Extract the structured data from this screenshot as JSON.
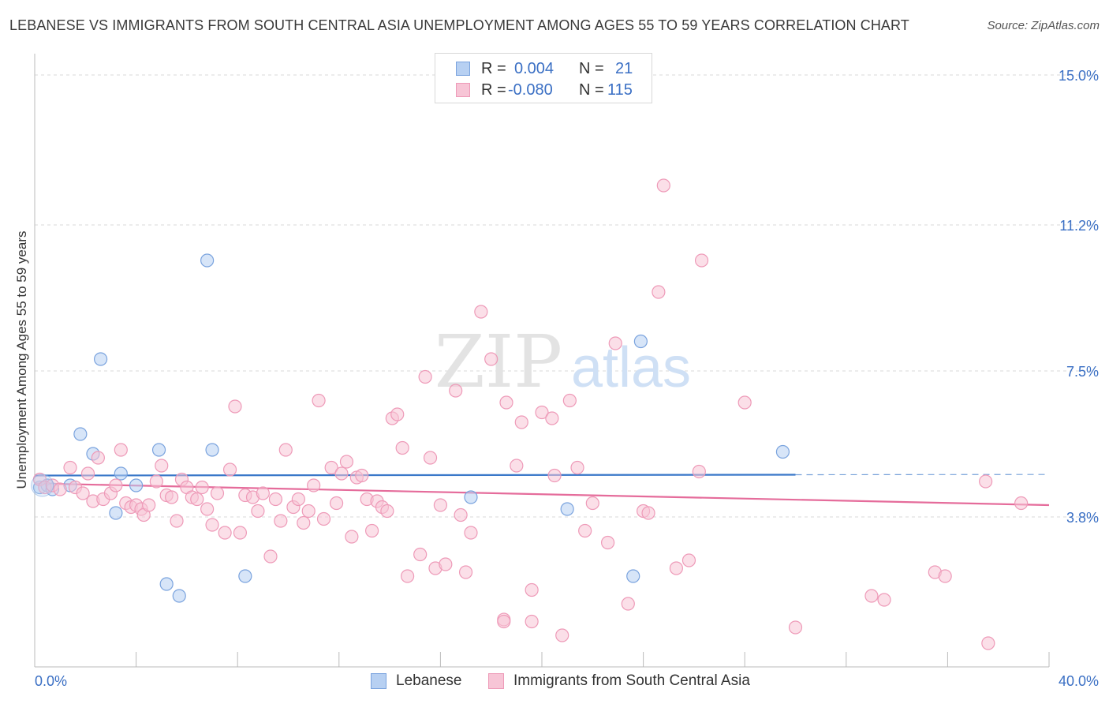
{
  "title": "LEBANESE VS IMMIGRANTS FROM SOUTH CENTRAL ASIA UNEMPLOYMENT AMONG AGES 55 TO 59 YEARS CORRELATION CHART",
  "source": "Source: ZipAtlas.com",
  "watermark": {
    "zip": "ZIP",
    "atlas": "atlas"
  },
  "legend": {
    "r_label": "R =",
    "n_label": "N =",
    "rows": [
      {
        "r": "0.004",
        "n": "21"
      },
      {
        "r": "-0.080",
        "n": "115"
      }
    ]
  },
  "bottom_legend": [
    "Lebanese",
    "Immigrants from South Central Asia"
  ],
  "colors": {
    "blue_fill": "#b7d0f2",
    "blue_stroke": "#7aa3de",
    "blue_line": "#3a78c9",
    "pink_fill": "#f7c5d6",
    "pink_stroke": "#ee9ab8",
    "pink_line": "#e56c9b",
    "tick_text": "#3a6fc4",
    "grid": "#d9d9d9"
  },
  "chart_data": {
    "type": "scatter",
    "title": "LEBANESE VS IMMIGRANTS FROM SOUTH CENTRAL ASIA UNEMPLOYMENT AMONG AGES 55 TO 59 YEARS CORRELATION CHART",
    "xlabel": "",
    "ylabel": "Unemployment Among Ages 55 to 59 years",
    "xlim": [
      0,
      40
    ],
    "ylim": [
      0,
      15.5
    ],
    "x_tick_labels": [
      "0.0%",
      "40.0%"
    ],
    "y_ticks": [
      3.8,
      7.5,
      11.2,
      15.0
    ],
    "y_tick_labels": [
      "3.8%",
      "7.5%",
      "11.2%",
      "15.0%"
    ],
    "grid": true,
    "series": [
      {
        "name": "Lebanese",
        "color": "blue",
        "R": 0.004,
        "N": 21,
        "trend": {
          "x": [
            0,
            30
          ],
          "y": [
            4.85,
            4.87
          ],
          "dash_to": [
            30,
            40
          ]
        },
        "points": [
          {
            "x": 0.2,
            "y": 4.55
          },
          {
            "x": 0.5,
            "y": 4.6
          },
          {
            "x": 1.4,
            "y": 4.6
          },
          {
            "x": 1.8,
            "y": 5.9
          },
          {
            "x": 2.3,
            "y": 5.4
          },
          {
            "x": 2.6,
            "y": 7.8
          },
          {
            "x": 3.2,
            "y": 3.9
          },
          {
            "x": 3.4,
            "y": 4.9
          },
          {
            "x": 4.0,
            "y": 4.6
          },
          {
            "x": 4.9,
            "y": 5.5
          },
          {
            "x": 5.2,
            "y": 2.1
          },
          {
            "x": 5.7,
            "y": 1.8
          },
          {
            "x": 6.8,
            "y": 10.3
          },
          {
            "x": 7.0,
            "y": 5.5
          },
          {
            "x": 8.3,
            "y": 2.3
          },
          {
            "x": 17.2,
            "y": 4.3
          },
          {
            "x": 21.0,
            "y": 4.0
          },
          {
            "x": 23.6,
            "y": 2.3
          },
          {
            "x": 23.9,
            "y": 8.25
          },
          {
            "x": 29.5,
            "y": 5.45
          },
          {
            "x": 0.7,
            "y": 4.5
          }
        ]
      },
      {
        "name": "Immigrants from South Central Asia",
        "color": "pink",
        "R": -0.08,
        "N": 115,
        "trend": {
          "x": [
            0,
            40
          ],
          "y": [
            4.65,
            4.1
          ]
        },
        "points": [
          {
            "x": 0.2,
            "y": 4.75
          },
          {
            "x": 0.4,
            "y": 4.55
          },
          {
            "x": 0.7,
            "y": 4.6
          },
          {
            "x": 1.0,
            "y": 4.5
          },
          {
            "x": 1.4,
            "y": 5.05
          },
          {
            "x": 1.6,
            "y": 4.55
          },
          {
            "x": 1.9,
            "y": 4.4
          },
          {
            "x": 2.1,
            "y": 4.9
          },
          {
            "x": 2.3,
            "y": 4.2
          },
          {
            "x": 2.5,
            "y": 5.3
          },
          {
            "x": 2.7,
            "y": 4.25
          },
          {
            "x": 3.0,
            "y": 4.4
          },
          {
            "x": 3.2,
            "y": 4.6
          },
          {
            "x": 3.4,
            "y": 5.5
          },
          {
            "x": 3.6,
            "y": 4.15
          },
          {
            "x": 3.8,
            "y": 4.05
          },
          {
            "x": 4.0,
            "y": 4.1
          },
          {
            "x": 4.2,
            "y": 4.0
          },
          {
            "x": 4.3,
            "y": 3.85
          },
          {
            "x": 4.5,
            "y": 4.1
          },
          {
            "x": 4.8,
            "y": 4.7
          },
          {
            "x": 5.0,
            "y": 5.1
          },
          {
            "x": 5.2,
            "y": 4.35
          },
          {
            "x": 5.4,
            "y": 4.3
          },
          {
            "x": 5.6,
            "y": 3.7
          },
          {
            "x": 5.8,
            "y": 4.75
          },
          {
            "x": 6.0,
            "y": 4.55
          },
          {
            "x": 6.2,
            "y": 4.3
          },
          {
            "x": 6.4,
            "y": 4.25
          },
          {
            "x": 6.6,
            "y": 4.55
          },
          {
            "x": 6.8,
            "y": 4.0
          },
          {
            "x": 7.0,
            "y": 3.6
          },
          {
            "x": 7.2,
            "y": 4.4
          },
          {
            "x": 7.5,
            "y": 3.4
          },
          {
            "x": 7.7,
            "y": 5.0
          },
          {
            "x": 7.9,
            "y": 6.6
          },
          {
            "x": 8.1,
            "y": 3.4
          },
          {
            "x": 8.3,
            "y": 4.35
          },
          {
            "x": 8.6,
            "y": 4.3
          },
          {
            "x": 8.8,
            "y": 3.95
          },
          {
            "x": 9.0,
            "y": 4.4
          },
          {
            "x": 9.3,
            "y": 2.8
          },
          {
            "x": 9.5,
            "y": 4.25
          },
          {
            "x": 9.7,
            "y": 3.7
          },
          {
            "x": 9.9,
            "y": 5.5
          },
          {
            "x": 10.2,
            "y": 4.05
          },
          {
            "x": 10.4,
            "y": 4.25
          },
          {
            "x": 10.6,
            "y": 3.65
          },
          {
            "x": 10.8,
            "y": 3.95
          },
          {
            "x": 11.0,
            "y": 4.6
          },
          {
            "x": 11.2,
            "y": 6.75
          },
          {
            "x": 11.4,
            "y": 3.75
          },
          {
            "x": 11.7,
            "y": 5.05
          },
          {
            "x": 11.9,
            "y": 4.15
          },
          {
            "x": 12.1,
            "y": 4.9
          },
          {
            "x": 12.3,
            "y": 5.2
          },
          {
            "x": 12.5,
            "y": 3.3
          },
          {
            "x": 12.7,
            "y": 4.8
          },
          {
            "x": 12.9,
            "y": 4.85
          },
          {
            "x": 13.1,
            "y": 4.25
          },
          {
            "x": 13.3,
            "y": 3.45
          },
          {
            "x": 13.5,
            "y": 4.2
          },
          {
            "x": 13.7,
            "y": 4.05
          },
          {
            "x": 13.9,
            "y": 3.95
          },
          {
            "x": 14.1,
            "y": 6.3
          },
          {
            "x": 14.3,
            "y": 6.4
          },
          {
            "x": 14.5,
            "y": 5.55
          },
          {
            "x": 14.7,
            "y": 2.3
          },
          {
            "x": 15.2,
            "y": 2.85
          },
          {
            "x": 15.4,
            "y": 7.35
          },
          {
            "x": 15.6,
            "y": 5.3
          },
          {
            "x": 15.8,
            "y": 2.5
          },
          {
            "x": 16.0,
            "y": 4.1
          },
          {
            "x": 16.2,
            "y": 2.6
          },
          {
            "x": 16.6,
            "y": 7.0
          },
          {
            "x": 16.8,
            "y": 3.85
          },
          {
            "x": 17.0,
            "y": 2.4
          },
          {
            "x": 17.2,
            "y": 3.4
          },
          {
            "x": 17.6,
            "y": 9.0
          },
          {
            "x": 18.5,
            "y": 1.2
          },
          {
            "x": 18.0,
            "y": 7.8
          },
          {
            "x": 18.6,
            "y": 6.7
          },
          {
            "x": 19.0,
            "y": 5.1
          },
          {
            "x": 19.2,
            "y": 6.2
          },
          {
            "x": 19.6,
            "y": 1.95
          },
          {
            "x": 20.0,
            "y": 6.45
          },
          {
            "x": 20.4,
            "y": 6.3
          },
          {
            "x": 20.5,
            "y": 4.85
          },
          {
            "x": 20.8,
            "y": 0.8
          },
          {
            "x": 21.1,
            "y": 6.75
          },
          {
            "x": 21.4,
            "y": 5.05
          },
          {
            "x": 21.7,
            "y": 3.45
          },
          {
            "x": 22.0,
            "y": 4.15
          },
          {
            "x": 22.6,
            "y": 3.15
          },
          {
            "x": 22.9,
            "y": 8.2
          },
          {
            "x": 23.4,
            "y": 1.6
          },
          {
            "x": 24.0,
            "y": 3.95
          },
          {
            "x": 24.2,
            "y": 3.9
          },
          {
            "x": 24.6,
            "y": 9.5
          },
          {
            "x": 24.8,
            "y": 12.2
          },
          {
            "x": 25.3,
            "y": 2.5
          },
          {
            "x": 25.8,
            "y": 2.7
          },
          {
            "x": 26.2,
            "y": 4.95
          },
          {
            "x": 26.3,
            "y": 10.3
          },
          {
            "x": 28.0,
            "y": 6.7
          },
          {
            "x": 30.0,
            "y": 1.0
          },
          {
            "x": 33.0,
            "y": 1.8
          },
          {
            "x": 33.5,
            "y": 1.7
          },
          {
            "x": 35.5,
            "y": 2.4
          },
          {
            "x": 35.9,
            "y": 2.3
          },
          {
            "x": 37.5,
            "y": 4.7
          },
          {
            "x": 37.6,
            "y": 0.6
          },
          {
            "x": 38.9,
            "y": 4.15
          },
          {
            "x": 18.5,
            "y": 1.15
          },
          {
            "x": 19.6,
            "y": 1.15
          }
        ]
      }
    ]
  }
}
